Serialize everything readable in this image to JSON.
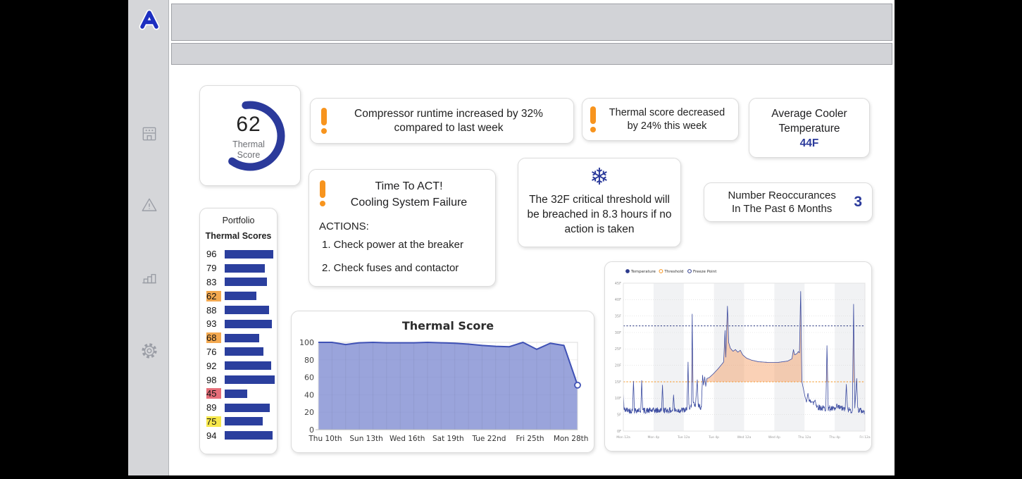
{
  "sidebar": {
    "icons": [
      {
        "name": "facility-icon"
      },
      {
        "name": "alerts-icon"
      },
      {
        "name": "analytics-icon"
      },
      {
        "name": "settings-icon"
      }
    ]
  },
  "gauge": {
    "value": "62",
    "label": "Thermal\nScore",
    "percent": 62,
    "color": "#2b3a9b"
  },
  "alerts": [
    {
      "text": "Compressor runtime increased by 32% compared to last week"
    },
    {
      "text": "Thermal score decreased by 24% this week"
    }
  ],
  "avg_cooler": {
    "line1": "Average Cooler",
    "line2": "Temperature",
    "value": "44F"
  },
  "action_card": {
    "title1": "Time To ACT!",
    "title2": "Cooling System Failure",
    "actions_label": "ACTIONS:",
    "actions": [
      "1. Check power at the breaker",
      "2. Check fuses and contactor"
    ]
  },
  "threshold_card": {
    "icon": "snowflake",
    "text": "The 32F critical threshold will be breached in 8.3 hours if no action is taken"
  },
  "reoccurances": {
    "line1": "Number Reoccurances",
    "line2": "In The Past 6 Months",
    "value": "3"
  },
  "portfolio": {
    "title1": "Portfolio",
    "title2": "Thermal Scores",
    "scores": [
      {
        "value": 96,
        "highlight": "none"
      },
      {
        "value": 79,
        "highlight": "none"
      },
      {
        "value": 83,
        "highlight": "none"
      },
      {
        "value": 62,
        "highlight": "orange"
      },
      {
        "value": 88,
        "highlight": "none"
      },
      {
        "value": 93,
        "highlight": "none"
      },
      {
        "value": 68,
        "highlight": "orange"
      },
      {
        "value": 76,
        "highlight": "none"
      },
      {
        "value": 92,
        "highlight": "none"
      },
      {
        "value": 98,
        "highlight": "none"
      },
      {
        "value": 45,
        "highlight": "red"
      },
      {
        "value": 89,
        "highlight": "none"
      },
      {
        "value": 75,
        "highlight": "yellow"
      },
      {
        "value": 94,
        "highlight": "none"
      }
    ],
    "bar_color": "#2b3f9e"
  },
  "chart_data": [
    {
      "id": "thermal_score_trend",
      "type": "area",
      "title": "Thermal Score",
      "x": [
        10,
        11,
        12,
        13,
        14,
        15,
        16,
        17,
        18,
        19,
        20,
        21,
        22,
        23,
        24,
        25,
        26,
        27,
        28,
        29
      ],
      "values": [
        100,
        100,
        97.5,
        99.5,
        100,
        99.5,
        99.5,
        99.5,
        100,
        99.5,
        99,
        98,
        96.5,
        95.5,
        95,
        100,
        92,
        99,
        96.5,
        51
      ],
      "x_tick_days": [
        10,
        13,
        16,
        19,
        22,
        25,
        28
      ],
      "x_ticks": [
        "Thu 10th",
        "Sun 13th",
        "Wed 16th",
        "Sat 19th",
        "Tue 22nd",
        "Fri 25th",
        "Mon 28th"
      ],
      "y_ticks": [
        0,
        20,
        40,
        60,
        80,
        100
      ],
      "ylim": [
        0,
        100
      ],
      "line_color": "#3f51b5",
      "fill_color": "rgba(126,139,209,0.78)",
      "end_marker": "open-circle"
    },
    {
      "id": "cooler_temperature",
      "type": "line",
      "legend": [
        {
          "label": "Temperature",
          "color": "#2c3a8c",
          "style": "filled"
        },
        {
          "label": "Threshold",
          "color": "#f7941e",
          "style": "open"
        },
        {
          "label": "Freeze Point",
          "color": "#2c3a8c",
          "style": "open"
        }
      ],
      "ylim": [
        0,
        45
      ],
      "y_ticks": [
        45,
        40,
        35,
        30,
        25,
        20,
        15,
        10,
        5,
        0
      ],
      "y_tick_suffix": "F",
      "threshold": 15,
      "freeze_point": 32,
      "x_ticks": [
        "Mon 12a",
        "Mon 4p",
        "Tue 12a",
        "Tue 4p",
        "Wed 12a",
        "Wed 4p",
        "Thu 12a",
        "Thu 4p",
        "Fri 12a"
      ],
      "keypoints": [
        [
          0,
          12
        ],
        [
          0.3,
          6.5
        ],
        [
          3.8,
          6.2
        ],
        [
          4.2,
          15.2
        ],
        [
          4.6,
          6.3
        ],
        [
          7.2,
          6.4
        ],
        [
          7.6,
          15.4
        ],
        [
          8,
          6.2
        ],
        [
          15.8,
          6.3
        ],
        [
          16.2,
          14
        ],
        [
          16.6,
          6.4
        ],
        [
          20.4,
          6.2
        ],
        [
          20.8,
          11
        ],
        [
          21.2,
          6.3
        ],
        [
          26.3,
          6.4
        ],
        [
          26.8,
          21
        ],
        [
          27.1,
          7.5
        ],
        [
          28.2,
          7.2
        ],
        [
          28.5,
          35.6
        ],
        [
          28.9,
          8.5
        ],
        [
          29.8,
          7.4
        ],
        [
          30.6,
          15.6
        ],
        [
          31,
          7.6
        ],
        [
          32.3,
          7.3
        ],
        [
          32.8,
          17
        ],
        [
          33.2,
          14
        ],
        [
          33.7,
          16.5
        ],
        [
          34.1,
          13.6
        ],
        [
          34.6,
          16
        ],
        [
          35.6,
          16.3
        ],
        [
          37.5,
          17.6
        ],
        [
          39.5,
          19.2
        ],
        [
          41.5,
          21
        ],
        [
          42.1,
          30.6
        ],
        [
          42.4,
          22.5
        ],
        [
          43.1,
          38
        ],
        [
          43.6,
          27
        ],
        [
          44.3,
          25.2
        ],
        [
          45.4,
          24.3
        ],
        [
          46.4,
          24.8
        ],
        [
          47.4,
          24
        ],
        [
          48.4,
          24.6
        ],
        [
          49.4,
          23.2
        ],
        [
          51,
          22.2
        ],
        [
          53,
          21.6
        ],
        [
          56,
          21.1
        ],
        [
          60,
          20.9
        ],
        [
          64,
          20.9
        ],
        [
          68,
          21.3
        ],
        [
          69.8,
          22
        ],
        [
          70.4,
          24.8
        ],
        [
          70.9,
          23.2
        ],
        [
          71.9,
          23.6
        ],
        [
          72.4,
          24.2
        ],
        [
          72.9,
          23.8
        ],
        [
          73.4,
          42.5
        ],
        [
          73.9,
          15
        ],
        [
          74.5,
          13
        ],
        [
          75.2,
          10.5
        ],
        [
          75.8,
          8.8
        ],
        [
          76.4,
          11.5
        ],
        [
          77,
          8.6
        ],
        [
          77.9,
          9.6
        ],
        [
          78.5,
          8.2
        ],
        [
          79.4,
          9.6
        ],
        [
          80,
          7.6
        ],
        [
          81,
          7.2
        ],
        [
          83.8,
          6.8
        ],
        [
          84.3,
          26
        ],
        [
          84.8,
          7
        ],
        [
          87.8,
          6.6
        ],
        [
          88.3,
          7.4
        ],
        [
          91.8,
          6.6
        ],
        [
          92.3,
          14.2
        ],
        [
          92.8,
          6.6
        ],
        [
          94.8,
          6.2
        ],
        [
          95.3,
          38.6
        ],
        [
          95.8,
          7
        ],
        [
          96.6,
          16
        ],
        [
          97,
          6.6
        ],
        [
          100,
          5.8
        ]
      ],
      "noise": {
        "amplitude": 0.9,
        "below": 10
      },
      "colors": {
        "line": "#3b4ba0",
        "fill": "rgba(244,152,93,0.45)",
        "threshold": "#f7941e",
        "freeze": "#26337e"
      }
    }
  ],
  "colors": {
    "brand_blue": "#2b3a9b",
    "alert_orange": "#f7941e",
    "highlight_orange": "#f4a950",
    "highlight_red": "#e66e79",
    "highlight_yellow": "#f7e84b"
  }
}
